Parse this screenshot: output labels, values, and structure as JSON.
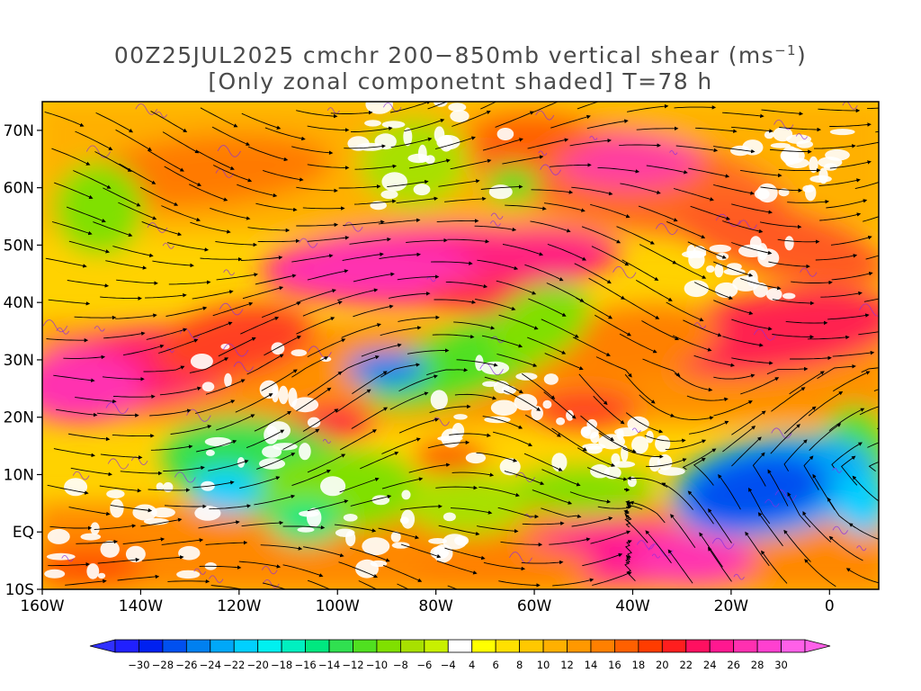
{
  "title": {
    "line1": "00Z25JUL2025 cmchr 200−850mb vertical shear (ms",
    "line1_sup": "−1",
    "line1_end": ")",
    "line2": "[Only zonal componetnt shaded] T=78 h"
  },
  "map": {
    "lon_range": [
      -160,
      10
    ],
    "lat_range": [
      -10,
      75
    ],
    "lat_ticks": [
      {
        "lat": 70,
        "label": "70N"
      },
      {
        "lat": 60,
        "label": "60N"
      },
      {
        "lat": 50,
        "label": "50N"
      },
      {
        "lat": 40,
        "label": "40N"
      },
      {
        "lat": 30,
        "label": "30N"
      },
      {
        "lat": 20,
        "label": "20N"
      },
      {
        "lat": 10,
        "label": "10N"
      },
      {
        "lat": 0,
        "label": "EQ"
      },
      {
        "lat": -10,
        "label": "10S"
      }
    ],
    "lon_ticks": [
      {
        "lon": -160,
        "label": "160W"
      },
      {
        "lon": -140,
        "label": "140W"
      },
      {
        "lon": -120,
        "label": "120W"
      },
      {
        "lon": -100,
        "label": "100W"
      },
      {
        "lon": -80,
        "label": "80W"
      },
      {
        "lon": -60,
        "label": "60W"
      },
      {
        "lon": -40,
        "label": "40W"
      },
      {
        "lon": -20,
        "label": "20W"
      },
      {
        "lon": 0,
        "label": "0"
      }
    ],
    "streamline_color": "#000000",
    "contour_color": "#8a2be2"
  },
  "colorbar": {
    "levels": [
      -30,
      -28,
      -26,
      -24,
      -22,
      -20,
      -18,
      -16,
      -14,
      -12,
      -10,
      -8,
      -6,
      -4,
      4,
      6,
      8,
      10,
      12,
      14,
      16,
      18,
      20,
      22,
      24,
      26,
      28,
      30
    ],
    "labels": [
      "−30",
      "−28",
      "−26",
      "−24",
      "−22",
      "−20",
      "−18",
      "−16",
      "−14",
      "−12",
      "−10",
      "−8",
      "−6",
      "−4",
      "4",
      "6",
      "8",
      "10",
      "12",
      "14",
      "16",
      "18",
      "20",
      "22",
      "24",
      "26",
      "28",
      "30"
    ],
    "colors": [
      "#2020ff",
      "#0020f0",
      "#0050f0",
      "#0080f0",
      "#00a8f8",
      "#00d0ff",
      "#00f0f0",
      "#00f0c0",
      "#00e880",
      "#30e050",
      "#50e020",
      "#80e000",
      "#a8e000",
      "#c8f000",
      "#ffffff",
      "#ffff00",
      "#ffe000",
      "#ffc800",
      "#ffb000",
      "#ff9800",
      "#ff8000",
      "#ff6000",
      "#ff3c00",
      "#ff1e1e",
      "#ff1060",
      "#ff1890",
      "#ff30b0",
      "#ff40d0",
      "#ff60e8"
    ]
  }
}
